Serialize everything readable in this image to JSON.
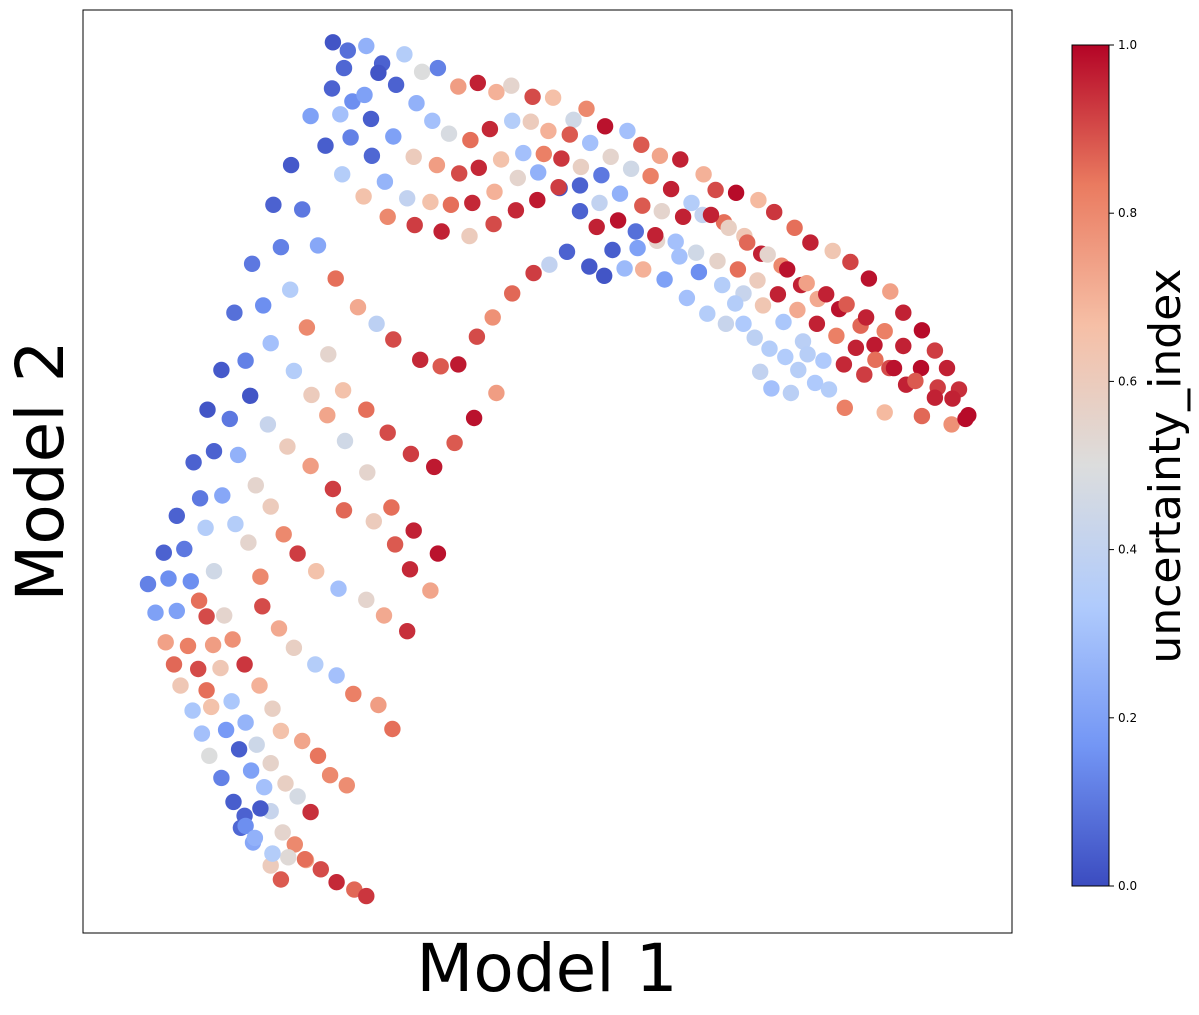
{
  "chart_data": {
    "type": "scatter",
    "xlabel": "Model 1",
    "ylabel": "Model 2",
    "xlim": [
      0,
      100
    ],
    "ylim": [
      0,
      100
    ],
    "grid": false,
    "colormap": "coolwarm",
    "colorbar": {
      "label": "uncertainty_index",
      "min": 0.0,
      "max": 1.0,
      "ticks": [
        "0.0",
        "0.2",
        "0.4",
        "0.6",
        "0.8",
        "1.0"
      ],
      "colors": [
        "#3b4cc0",
        "#7396f5",
        "#b0cbfc",
        "#dcdddd",
        "#f6bfa6",
        "#ea7b60",
        "#b40426"
      ]
    },
    "points": [
      [
        26.9,
        96.5,
        0.02
      ],
      [
        28.5,
        95.6,
        0.08
      ],
      [
        30.5,
        96.1,
        0.25
      ],
      [
        32.2,
        94.2,
        0.05
      ],
      [
        34.6,
        95.2,
        0.35
      ],
      [
        36.5,
        93.3,
        0.5
      ],
      [
        38.2,
        93.7,
        0.12
      ],
      [
        40.4,
        91.7,
        0.75
      ],
      [
        42.5,
        92.1,
        0.96
      ],
      [
        44.5,
        91.1,
        0.7
      ],
      [
        46.1,
        91.8,
        0.55
      ],
      [
        48.4,
        90.6,
        0.9
      ],
      [
        50.6,
        90.5,
        0.66
      ],
      [
        52.8,
        88.1,
        0.45
      ],
      [
        54.2,
        89.3,
        0.8
      ],
      [
        56.2,
        87.4,
        0.98
      ],
      [
        58.6,
        86.9,
        0.3
      ],
      [
        60.1,
        85.4,
        0.88
      ],
      [
        62.1,
        84.2,
        0.73
      ],
      [
        64.3,
        83.8,
        0.96
      ],
      [
        66.8,
        82.2,
        0.7
      ],
      [
        68.1,
        80.5,
        0.9
      ],
      [
        70.3,
        80.2,
        0.99
      ],
      [
        72.7,
        79.4,
        0.68
      ],
      [
        74.4,
        78.1,
        0.93
      ],
      [
        76.6,
        76.4,
        0.85
      ],
      [
        78.3,
        74.8,
        0.96
      ],
      [
        80.7,
        73.9,
        0.63
      ],
      [
        82.6,
        72.7,
        0.91
      ],
      [
        84.6,
        70.9,
        0.98
      ],
      [
        86.9,
        69.5,
        0.74
      ],
      [
        88.3,
        67.2,
        0.96
      ],
      [
        90.3,
        65.3,
        0.99
      ],
      [
        91.7,
        63.1,
        0.92
      ],
      [
        93.0,
        61.2,
        0.96
      ],
      [
        94.3,
        58.9,
        0.94
      ],
      [
        95.3,
        56.1,
        0.99
      ],
      [
        93.5,
        55.1,
        0.78
      ],
      [
        90.3,
        56.0,
        0.86
      ],
      [
        86.3,
        56.4,
        0.68
      ],
      [
        82.0,
        56.9,
        0.82
      ],
      [
        26.8,
        91.5,
        0.05
      ],
      [
        29.0,
        90.1,
        0.15
      ],
      [
        31.0,
        88.2,
        0.04
      ],
      [
        33.4,
        86.3,
        0.2
      ],
      [
        35.6,
        84.1,
        0.6
      ],
      [
        38.1,
        83.2,
        0.75
      ],
      [
        40.5,
        82.3,
        0.9
      ],
      [
        42.6,
        82.9,
        0.95
      ],
      [
        45.0,
        83.8,
        0.65
      ],
      [
        47.4,
        84.5,
        0.3
      ],
      [
        49.6,
        84.4,
        0.82
      ],
      [
        51.5,
        83.9,
        0.93
      ],
      [
        53.6,
        83.0,
        0.58
      ],
      [
        55.8,
        82.1,
        0.1
      ],
      [
        57.8,
        80.1,
        0.25
      ],
      [
        60.2,
        78.8,
        0.88
      ],
      [
        62.3,
        78.2,
        0.55
      ],
      [
        64.6,
        77.6,
        0.96
      ],
      [
        66.7,
        77.8,
        0.4
      ],
      [
        69.0,
        77.0,
        0.85
      ],
      [
        71.2,
        75.5,
        0.62
      ],
      [
        73.0,
        73.6,
        0.96
      ],
      [
        75.2,
        72.3,
        0.8
      ],
      [
        77.3,
        70.2,
        0.96
      ],
      [
        79.1,
        68.7,
        0.72
      ],
      [
        81.4,
        67.6,
        0.98
      ],
      [
        83.7,
        65.8,
        0.86
      ],
      [
        85.2,
        63.7,
        0.97
      ],
      [
        86.8,
        61.2,
        0.9
      ],
      [
        88.6,
        59.4,
        0.96
      ],
      [
        24.5,
        88.5,
        0.2
      ],
      [
        26.1,
        85.3,
        0.04
      ],
      [
        27.9,
        82.2,
        0.35
      ],
      [
        30.2,
        79.8,
        0.65
      ],
      [
        32.8,
        77.6,
        0.8
      ],
      [
        35.7,
        76.7,
        0.92
      ],
      [
        38.6,
        76.0,
        0.96
      ],
      [
        41.6,
        75.5,
        0.6
      ],
      [
        44.2,
        76.8,
        0.9
      ],
      [
        46.6,
        78.3,
        0.95
      ],
      [
        48.9,
        79.4,
        0.97
      ],
      [
        51.3,
        80.7,
        0.02
      ],
      [
        53.5,
        81.0,
        0.05
      ],
      [
        55.6,
        79.1,
        0.4
      ],
      [
        57.6,
        77.2,
        0.98
      ],
      [
        59.5,
        76.0,
        0.08
      ],
      [
        61.8,
        75.0,
        0.55
      ],
      [
        64.2,
        73.3,
        0.3
      ],
      [
        66.3,
        71.6,
        0.15
      ],
      [
        68.8,
        70.2,
        0.35
      ],
      [
        71.1,
        69.3,
        0.42
      ],
      [
        73.2,
        68.0,
        0.63
      ],
      [
        75.4,
        66.2,
        0.32
      ],
      [
        77.5,
        64.1,
        0.37
      ],
      [
        79.7,
        62.0,
        0.33
      ],
      [
        81.9,
        61.6,
        0.95
      ],
      [
        84.1,
        60.5,
        0.92
      ],
      [
        22.4,
        83.2,
        0.03
      ],
      [
        23.6,
        78.4,
        0.1
      ],
      [
        25.3,
        74.5,
        0.22
      ],
      [
        27.2,
        70.9,
        0.85
      ],
      [
        29.6,
        67.8,
        0.72
      ],
      [
        31.6,
        66.0,
        0.38
      ],
      [
        33.4,
        64.3,
        0.9
      ],
      [
        36.3,
        62.1,
        0.95
      ],
      [
        38.5,
        61.4,
        0.88
      ],
      [
        40.4,
        61.6,
        0.97
      ],
      [
        42.4,
        64.6,
        0.9
      ],
      [
        44.1,
        66.7,
        0.78
      ],
      [
        46.2,
        69.3,
        0.86
      ],
      [
        48.5,
        71.5,
        0.92
      ],
      [
        50.2,
        72.4,
        0.4
      ],
      [
        52.1,
        73.8,
        0.05
      ],
      [
        54.5,
        72.2,
        0.03
      ],
      [
        56.1,
        71.2,
        0.02
      ],
      [
        58.3,
        72.0,
        0.28
      ],
      [
        60.3,
        71.9,
        0.7
      ],
      [
        62.6,
        70.8,
        0.2
      ],
      [
        65.0,
        68.8,
        0.3
      ],
      [
        67.2,
        67.1,
        0.35
      ],
      [
        69.2,
        66.0,
        0.42
      ],
      [
        20.5,
        78.9,
        0.05
      ],
      [
        21.3,
        74.3,
        0.12
      ],
      [
        22.3,
        69.7,
        0.35
      ],
      [
        24.1,
        65.6,
        0.8
      ],
      [
        26.4,
        62.7,
        0.55
      ],
      [
        28.0,
        58.8,
        0.65
      ],
      [
        30.5,
        56.7,
        0.85
      ],
      [
        32.8,
        54.2,
        0.9
      ],
      [
        35.3,
        51.9,
        0.92
      ],
      [
        37.8,
        50.5,
        0.97
      ],
      [
        40.0,
        53.1,
        0.88
      ],
      [
        42.1,
        55.8,
        0.98
      ],
      [
        44.5,
        58.5,
        0.75
      ],
      [
        18.2,
        72.5,
        0.1
      ],
      [
        19.4,
        68.0,
        0.15
      ],
      [
        20.2,
        63.9,
        0.3
      ],
      [
        22.7,
        60.9,
        0.35
      ],
      [
        24.6,
        58.3,
        0.6
      ],
      [
        26.3,
        56.1,
        0.73
      ],
      [
        28.2,
        53.3,
        0.45
      ],
      [
        30.6,
        49.9,
        0.55
      ],
      [
        33.2,
        46.1,
        0.85
      ],
      [
        35.6,
        43.6,
        0.96
      ],
      [
        38.2,
        41.1,
        0.98
      ],
      [
        16.3,
        67.2,
        0.08
      ],
      [
        17.5,
        62.0,
        0.12
      ],
      [
        18.0,
        58.2,
        0.02
      ],
      [
        19.9,
        55.1,
        0.42
      ],
      [
        22.0,
        52.7,
        0.6
      ],
      [
        24.5,
        50.6,
        0.75
      ],
      [
        26.9,
        48.1,
        0.92
      ],
      [
        28.1,
        45.8,
        0.86
      ],
      [
        31.3,
        44.6,
        0.6
      ],
      [
        33.6,
        42.1,
        0.88
      ],
      [
        35.2,
        39.4,
        0.95
      ],
      [
        37.4,
        37.1,
        0.73
      ],
      [
        14.9,
        61.0,
        0.03
      ],
      [
        15.8,
        55.7,
        0.1
      ],
      [
        16.7,
        51.8,
        0.25
      ],
      [
        18.6,
        48.5,
        0.55
      ],
      [
        20.2,
        46.2,
        0.6
      ],
      [
        21.6,
        43.2,
        0.8
      ],
      [
        23.1,
        41.1,
        0.92
      ],
      [
        25.1,
        39.2,
        0.65
      ],
      [
        27.5,
        37.3,
        0.3
      ],
      [
        30.5,
        36.1,
        0.55
      ],
      [
        32.4,
        34.4,
        0.72
      ],
      [
        34.9,
        32.7,
        0.94
      ],
      [
        13.4,
        56.7,
        0.02
      ],
      [
        14.1,
        52.2,
        0.05
      ],
      [
        15.0,
        47.4,
        0.22
      ],
      [
        16.4,
        44.3,
        0.35
      ],
      [
        17.8,
        42.3,
        0.55
      ],
      [
        19.1,
        38.6,
        0.8
      ],
      [
        19.3,
        35.4,
        0.9
      ],
      [
        21.1,
        33.0,
        0.72
      ],
      [
        22.7,
        30.9,
        0.58
      ],
      [
        25.0,
        29.1,
        0.35
      ],
      [
        27.3,
        27.9,
        0.3
      ],
      [
        29.1,
        25.9,
        0.82
      ],
      [
        31.8,
        24.7,
        0.75
      ],
      [
        33.3,
        22.1,
        0.85
      ],
      [
        11.9,
        51.0,
        0.05
      ],
      [
        12.6,
        47.1,
        0.1
      ],
      [
        13.2,
        43.9,
        0.35
      ],
      [
        14.1,
        39.2,
        0.45
      ],
      [
        15.2,
        34.4,
        0.55
      ],
      [
        16.1,
        31.8,
        0.78
      ],
      [
        17.4,
        29.1,
        0.93
      ],
      [
        19.0,
        26.8,
        0.7
      ],
      [
        20.4,
        24.3,
        0.58
      ],
      [
        21.3,
        21.9,
        0.65
      ],
      [
        23.6,
        20.8,
        0.73
      ],
      [
        25.3,
        19.2,
        0.84
      ],
      [
        26.6,
        17.1,
        0.8
      ],
      [
        28.4,
        16.0,
        0.79
      ],
      [
        10.1,
        45.2,
        0.05
      ],
      [
        10.9,
        41.6,
        0.1
      ],
      [
        11.6,
        38.1,
        0.15
      ],
      [
        12.5,
        36.0,
        0.85
      ],
      [
        13.3,
        34.3,
        0.9
      ],
      [
        14.0,
        31.2,
        0.75
      ],
      [
        14.8,
        28.7,
        0.62
      ],
      [
        16.0,
        25.1,
        0.32
      ],
      [
        17.5,
        22.8,
        0.26
      ],
      [
        18.7,
        20.4,
        0.44
      ],
      [
        20.2,
        18.4,
        0.56
      ],
      [
        21.8,
        16.2,
        0.58
      ],
      [
        23.1,
        14.8,
        0.47
      ],
      [
        24.5,
        13.1,
        0.94
      ],
      [
        8.7,
        41.2,
        0.05
      ],
      [
        9.2,
        38.4,
        0.15
      ],
      [
        10.1,
        34.9,
        0.2
      ],
      [
        11.3,
        31.1,
        0.82
      ],
      [
        12.4,
        28.6,
        0.9
      ],
      [
        13.3,
        26.3,
        0.85
      ],
      [
        13.8,
        24.5,
        0.65
      ],
      [
        15.4,
        22.0,
        0.18
      ],
      [
        16.8,
        19.9,
        0.04
      ],
      [
        18.1,
        17.6,
        0.2
      ],
      [
        19.5,
        15.8,
        0.3
      ],
      [
        20.2,
        13.2,
        0.42
      ],
      [
        21.5,
        10.9,
        0.55
      ],
      [
        22.8,
        9.6,
        0.8
      ],
      [
        24.0,
        7.9,
        0.73
      ],
      [
        7.0,
        37.8,
        0.12
      ],
      [
        7.8,
        34.7,
        0.2
      ],
      [
        8.9,
        31.5,
        0.74
      ],
      [
        9.8,
        29.1,
        0.86
      ],
      [
        10.5,
        26.8,
        0.62
      ],
      [
        11.8,
        24.1,
        0.32
      ],
      [
        12.8,
        21.6,
        0.3
      ],
      [
        13.6,
        19.2,
        0.5
      ],
      [
        14.9,
        16.8,
        0.12
      ],
      [
        16.2,
        14.2,
        0.04
      ],
      [
        17.0,
        11.4,
        0.06
      ],
      [
        18.3,
        9.8,
        0.22
      ],
      [
        20.2,
        7.3,
        0.6
      ],
      [
        21.3,
        5.8,
        0.88
      ],
      [
        17.4,
        12.7,
        0.05
      ],
      [
        17.5,
        11.6,
        0.15
      ],
      [
        20.4,
        8.6,
        0.4
      ],
      [
        22.1,
        8.2,
        0.52
      ],
      [
        23.9,
        8.0,
        0.85
      ],
      [
        25.6,
        6.9,
        0.9
      ],
      [
        27.3,
        5.5,
        0.95
      ],
      [
        29.2,
        4.7,
        0.86
      ],
      [
        30.5,
        4.0,
        0.93
      ],
      [
        18.5,
        10.3,
        0.25
      ],
      [
        19.1,
        13.5,
        0.03
      ],
      [
        20.4,
        8.6,
        0.35
      ],
      [
        28.1,
        93.7,
        0.06
      ],
      [
        27.7,
        88.7,
        0.3
      ],
      [
        28.8,
        86.2,
        0.12
      ],
      [
        30.3,
        90.8,
        0.2
      ],
      [
        31.8,
        93.2,
        0.02
      ],
      [
        33.7,
        91.9,
        0.05
      ],
      [
        35.9,
        89.9,
        0.25
      ],
      [
        37.6,
        88.0,
        0.3
      ],
      [
        39.4,
        86.6,
        0.48
      ],
      [
        41.7,
        85.9,
        0.85
      ],
      [
        43.8,
        87.1,
        0.95
      ],
      [
        46.2,
        88.0,
        0.35
      ],
      [
        48.2,
        87.9,
        0.6
      ],
      [
        50.1,
        86.9,
        0.7
      ],
      [
        52.4,
        86.5,
        0.88
      ],
      [
        54.6,
        85.6,
        0.3
      ],
      [
        56.8,
        84.1,
        0.55
      ],
      [
        59.0,
        82.8,
        0.45
      ],
      [
        61.1,
        82.0,
        0.82
      ],
      [
        63.3,
        80.6,
        0.96
      ],
      [
        65.5,
        79.1,
        0.35
      ],
      [
        67.6,
        77.8,
        0.96
      ],
      [
        69.5,
        76.4,
        0.58
      ],
      [
        71.5,
        74.8,
        0.86
      ],
      [
        73.7,
        73.5,
        0.55
      ],
      [
        75.8,
        71.9,
        0.98
      ],
      [
        77.9,
        70.4,
        0.74
      ],
      [
        80.0,
        69.2,
        0.96
      ],
      [
        82.2,
        68.1,
        0.88
      ],
      [
        84.3,
        66.7,
        0.96
      ],
      [
        86.3,
        65.2,
        0.82
      ],
      [
        88.3,
        63.6,
        0.96
      ],
      [
        90.2,
        61.2,
        0.99
      ],
      [
        92.0,
        59.1,
        0.92
      ],
      [
        93.6,
        57.9,
        0.96
      ],
      [
        95.0,
        55.7,
        0.99
      ],
      [
        31.1,
        84.2,
        0.06
      ],
      [
        32.5,
        81.4,
        0.26
      ],
      [
        34.9,
        79.6,
        0.4
      ],
      [
        37.4,
        79.2,
        0.65
      ],
      [
        39.6,
        78.9,
        0.85
      ],
      [
        41.9,
        79.1,
        0.95
      ],
      [
        44.3,
        80.3,
        0.7
      ],
      [
        46.8,
        81.8,
        0.55
      ],
      [
        49.0,
        82.4,
        0.25
      ],
      [
        51.2,
        80.8,
        0.92
      ],
      [
        53.5,
        78.2,
        0.05
      ],
      [
        55.3,
        76.5,
        0.96
      ],
      [
        57.0,
        74.0,
        0.04
      ],
      [
        59.7,
        74.2,
        0.2
      ],
      [
        61.6,
        75.6,
        0.96
      ],
      [
        63.8,
        74.9,
        0.3
      ],
      [
        66.0,
        73.7,
        0.45
      ],
      [
        68.3,
        72.8,
        0.56
      ],
      [
        70.5,
        71.9,
        0.85
      ],
      [
        72.6,
        70.7,
        0.6
      ],
      [
        74.8,
        69.2,
        0.96
      ],
      [
        76.9,
        67.5,
        0.72
      ],
      [
        79.0,
        66.0,
        0.96
      ],
      [
        81.1,
        64.7,
        0.82
      ],
      [
        83.2,
        63.4,
        0.96
      ],
      [
        85.3,
        62.1,
        0.85
      ],
      [
        87.3,
        61.2,
        0.98
      ],
      [
        89.6,
        59.8,
        0.88
      ],
      [
        91.7,
        58.0,
        0.96
      ],
      [
        70.2,
        68.2,
        0.35
      ],
      [
        71.1,
        66.0,
        0.33
      ],
      [
        72.3,
        64.5,
        0.38
      ],
      [
        73.9,
        63.3,
        0.35
      ],
      [
        75.6,
        62.4,
        0.34
      ],
      [
        77.0,
        61.0,
        0.36
      ],
      [
        78.8,
        59.6,
        0.33
      ],
      [
        80.3,
        58.9,
        0.35
      ],
      [
        72.9,
        60.8,
        0.4
      ],
      [
        74.1,
        59.0,
        0.3
      ],
      [
        76.2,
        58.5,
        0.37
      ],
      [
        78.0,
        62.7,
        0.36
      ]
    ]
  }
}
